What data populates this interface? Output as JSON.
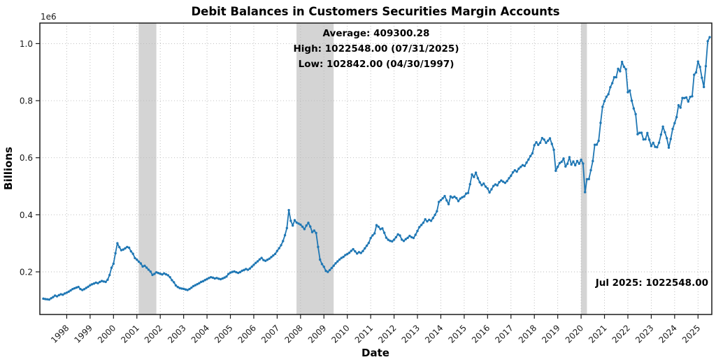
{
  "figure": {
    "title": "Debit Balances in Customers Securities Margin Accounts",
    "xlabel": "Date",
    "ylabel": "Billions",
    "y_offset_text": "1e6"
  },
  "annotations": {
    "average": "Average: 409300.28",
    "high": "High: 1022548.00 (07/31/2025)",
    "low": "Low: 102842.00 (04/30/1997)",
    "last_point": "Jul 2025: 1022548.00"
  },
  "chart_data": {
    "type": "line",
    "title": "Debit Balances in Customers Securities Margin Accounts",
    "xlabel": "Date",
    "ylabel": "Billions",
    "y_offset_text": "1e6",
    "frequency": "monthly",
    "start_month": "1997-01",
    "end_month": "2025-07",
    "stats": {
      "average": 409300.28,
      "high": 1022548.0,
      "high_date": "07/31/2025",
      "low": 102842.0,
      "low_date": "04/30/1997",
      "latest_label": "Jul 2025",
      "latest_value": 1022548.0
    },
    "y_ticks": {
      "values": [
        200000,
        400000,
        600000,
        800000,
        1000000
      ],
      "labels": [
        "0.2",
        "0.4",
        "0.6",
        "0.8",
        "1.0"
      ]
    },
    "x_tick_years": [
      1998,
      1999,
      2000,
      2001,
      2002,
      2003,
      2004,
      2005,
      2006,
      2007,
      2008,
      2009,
      2010,
      2011,
      2012,
      2013,
      2014,
      2015,
      2016,
      2017,
      2018,
      2019,
      2020,
      2021,
      2022,
      2023,
      2024,
      2025
    ],
    "recession_bands": [
      {
        "from": "2001-03",
        "to": "2001-11"
      },
      {
        "from": "2007-12",
        "to": "2009-06"
      },
      {
        "from": "2020-02",
        "to": "2020-04"
      }
    ],
    "grid": true,
    "legend": "none",
    "colors": {
      "line": "#1f77b4",
      "recession_band": "#d4d4d4",
      "grid": "#b8b8b8",
      "spine": "#1a1a1a"
    },
    "values": [
      105980,
      104600,
      103750,
      102842,
      107410,
      111530,
      116840,
      114230,
      118310,
      121540,
      119870,
      124310,
      127060,
      130540,
      134820,
      139630,
      142310,
      144870,
      147230,
      139780,
      136420,
      139240,
      143680,
      147910,
      152980,
      156480,
      158940,
      162310,
      160120,
      164730,
      167880,
      166240,
      164810,
      172460,
      188930,
      214520,
      228540,
      265170,
      300280,
      286510,
      275840,
      278060,
      282340,
      287150,
      284630,
      271920,
      263480,
      248250,
      242760,
      235630,
      229410,
      218740,
      221290,
      214830,
      207610,
      201180,
      189270,
      192740,
      198390,
      195820,
      193380,
      190790,
      194560,
      191230,
      187940,
      181260,
      170840,
      163510,
      152290,
      146830,
      143160,
      141480,
      140290,
      138160,
      136390,
      139820,
      144480,
      149830,
      153240,
      156710,
      160280,
      164790,
      167230,
      171340,
      174820,
      178340,
      181230,
      179580,
      176870,
      178430,
      175790,
      174280,
      176840,
      179860,
      183610,
      192370,
      197260,
      199840,
      201430,
      198710,
      196280,
      199170,
      203780,
      206440,
      209830,
      207260,
      211640,
      218190,
      224680,
      231270,
      236810,
      243520,
      248940,
      241190,
      238630,
      242280,
      246130,
      251760,
      257420,
      262940,
      273380,
      282730,
      293240,
      307810,
      328370,
      353620,
      416370,
      378860,
      362410,
      381180,
      372640,
      369180,
      365380,
      358240,
      349790,
      362280,
      371860,
      358730,
      339420,
      344570,
      336180,
      287360,
      242840,
      227290,
      217840,
      203380,
      199770,
      206340,
      213680,
      221430,
      229760,
      236420,
      243080,
      248720,
      252340,
      258860,
      262380,
      266840,
      273460,
      279340,
      271820,
      264280,
      268930,
      266180,
      272840,
      282360,
      291680,
      301290,
      318360,
      327940,
      334810,
      363490,
      358230,
      349680,
      352280,
      336940,
      319780,
      312380,
      308660,
      306870,
      312760,
      321340,
      331580,
      327410,
      312870,
      308340,
      314580,
      319230,
      325840,
      321430,
      318690,
      329840,
      343360,
      356830,
      364180,
      371930,
      384280,
      376840,
      382360,
      378920,
      388640,
      399780,
      412340,
      444930,
      451280,
      457840,
      465720,
      450310,
      437160,
      464310,
      460160,
      463340,
      458440,
      447860,
      456790,
      461240,
      464280,
      474360,
      476380,
      507150,
      541260,
      532480,
      547630,
      528370,
      513940,
      503820,
      509340,
      498720,
      492310,
      478420,
      489160,
      500940,
      506290,
      503180,
      514370,
      520230,
      515840,
      511920,
      518390,
      528240,
      536820,
      548730,
      555940,
      551280,
      561630,
      567840,
      573920,
      571360,
      582740,
      593680,
      605820,
      615370,
      643780,
      654290,
      645180,
      652370,
      668940,
      663810,
      652180,
      659630,
      667920,
      648260,
      627840,
      554280,
      568430,
      581260,
      585690,
      597140,
      569360,
      578940,
      601730,
      575840,
      586920,
      573680,
      588240,
      579210,
      592840,
      579630,
      479290,
      524690,
      525170,
      556310,
      588290,
      645180,
      645960,
      659330,
      722120,
      778290,
      798630,
      813680,
      822550,
      847190,
      861260,
      882320,
      882140,
      911540,
      903110,
      935940,
      918600,
      910130,
      829630,
      835340,
      799960,
      772680,
      752790,
      682380,
      687160,
      687520,
      664110,
      664670,
      686630,
      663340,
      640940,
      652370,
      638240,
      636830,
      652740,
      681230,
      709140,
      689180,
      668310,
      635340,
      665870,
      700960,
      721280,
      742370,
      784140,
      775480,
      809440,
      809210,
      811240,
      796950,
      813180,
      815370,
      890860,
      899160,
      937250,
      918420,
      880320,
      847870,
      920960,
      1008310,
      1022548
    ]
  }
}
